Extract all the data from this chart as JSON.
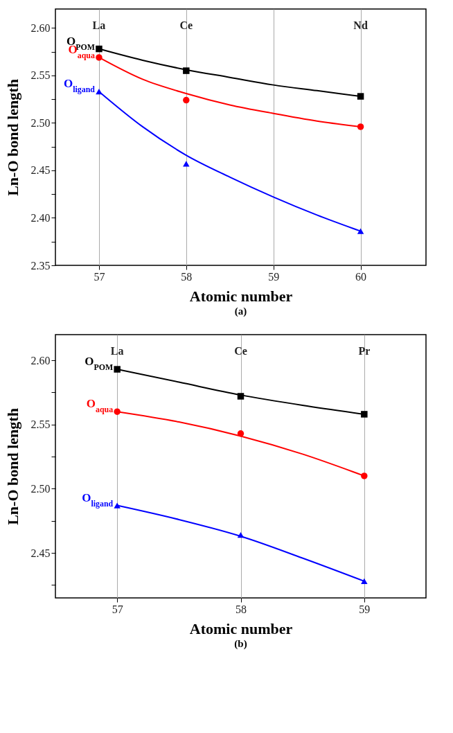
{
  "chart_data": [
    {
      "type": "scatter",
      "xlabel": "Atomic number",
      "ylabel": "Ln-O bond length",
      "xlim": [
        56.5,
        60.75
      ],
      "xticks": [
        57,
        58,
        59,
        60
      ],
      "ylim": [
        2.35,
        2.62
      ],
      "yticks": [
        {
          "value": 2.35,
          "label": "2.35"
        },
        {
          "value": 2.375,
          "label": null
        },
        {
          "value": 2.4,
          "label": "2.40"
        },
        {
          "value": 2.425,
          "label": null
        },
        {
          "value": 2.45,
          "label": "2.45"
        },
        {
          "value": 2.475,
          "label": null
        },
        {
          "value": 2.5,
          "label": "2.50"
        },
        {
          "value": 2.525,
          "label": null
        },
        {
          "value": 2.55,
          "label": "2.55"
        },
        {
          "value": 2.575,
          "label": null
        },
        {
          "value": 2.6,
          "label": "2.60"
        }
      ],
      "grid": "x",
      "annotations": [
        "La",
        "Ce",
        "Nd",
        "(a)"
      ],
      "series": [
        {
          "name": "O$_{POM}$",
          "color": "#000000",
          "marker": "square",
          "x": [
            57,
            58,
            60
          ],
          "values": [
            2.578,
            2.555,
            2.528
          ]
        },
        {
          "name": "O$_{aqua}$",
          "color": "#ff0000",
          "marker": "circle",
          "x": [
            57,
            58,
            60
          ],
          "values": [
            2.569,
            2.524,
            2.496
          ]
        },
        {
          "name": "O$_{ligand}$",
          "color": "#0000ff",
          "marker": "triangle",
          "x": [
            57,
            58,
            60
          ],
          "values": [
            2.533,
            2.457,
            2.386
          ]
        },
        {
          "type": "line",
          "color": "#000000",
          "x": [
            57,
            57.5,
            58,
            58.5,
            59,
            59.5,
            60
          ],
          "values": [
            2.578,
            2.566,
            2.556,
            2.548,
            2.54,
            2.534,
            2.528
          ]
        },
        {
          "type": "line",
          "color": "#ff0000",
          "x": [
            57,
            57.5,
            58,
            58.5,
            59,
            59.5,
            60
          ],
          "values": [
            2.569,
            2.546,
            2.531,
            2.519,
            2.51,
            2.502,
            2.496
          ]
        },
        {
          "type": "line",
          "color": "#0000ff",
          "x": [
            57,
            57.5,
            58,
            58.5,
            59,
            59.5,
            60
          ],
          "values": [
            2.533,
            2.496,
            2.466,
            2.443,
            2.422,
            2.403,
            2.386
          ]
        }
      ]
    },
    {
      "type": "scatter",
      "xlabel": "Atomic number",
      "ylabel": "Ln-O bond length",
      "xlim": [
        56.5,
        59.5
      ],
      "xticks": [
        57,
        58,
        59
      ],
      "ylim": [
        2.415,
        2.62
      ],
      "yticks": [
        {
          "value": 2.425,
          "label": null
        },
        {
          "value": 2.45,
          "label": "2.45"
        },
        {
          "value": 2.475,
          "label": null
        },
        {
          "value": 2.5,
          "label": "2.50"
        },
        {
          "value": 2.525,
          "label": null
        },
        {
          "value": 2.55,
          "label": "2.55"
        },
        {
          "value": 2.575,
          "label": null
        },
        {
          "value": 2.6,
          "label": "2.60"
        }
      ],
      "grid": "x",
      "annotations": [
        "La",
        "Ce",
        "Pr",
        "(b)"
      ],
      "series": [
        {
          "name": "O$_{POM}$",
          "color": "#000000",
          "marker": "square",
          "x": [
            57,
            58,
            59
          ],
          "values": [
            2.593,
            2.572,
            2.558
          ]
        },
        {
          "name": "O$_{aqua}$",
          "color": "#ff0000",
          "marker": "circle",
          "x": [
            57,
            58,
            59
          ],
          "values": [
            2.56,
            2.543,
            2.51
          ]
        },
        {
          "name": "O$_{ligand}$",
          "color": "#0000ff",
          "marker": "triangle",
          "x": [
            57,
            58,
            59
          ],
          "values": [
            2.487,
            2.464,
            2.428
          ]
        },
        {
          "type": "line",
          "color": "#000000",
          "x": [
            57,
            57.5,
            58,
            58.5,
            59
          ],
          "values": [
            2.593,
            2.583,
            2.573,
            2.565,
            2.558
          ]
        },
        {
          "type": "line",
          "color": "#ff0000",
          "x": [
            57,
            57.5,
            58,
            58.5,
            59
          ],
          "values": [
            2.56,
            2.552,
            2.541,
            2.527,
            2.51
          ]
        },
        {
          "type": "line",
          "color": "#0000ff",
          "x": [
            57,
            57.5,
            58,
            58.5,
            59
          ],
          "values": [
            2.487,
            2.476,
            2.463,
            2.446,
            2.428
          ]
        }
      ]
    }
  ]
}
